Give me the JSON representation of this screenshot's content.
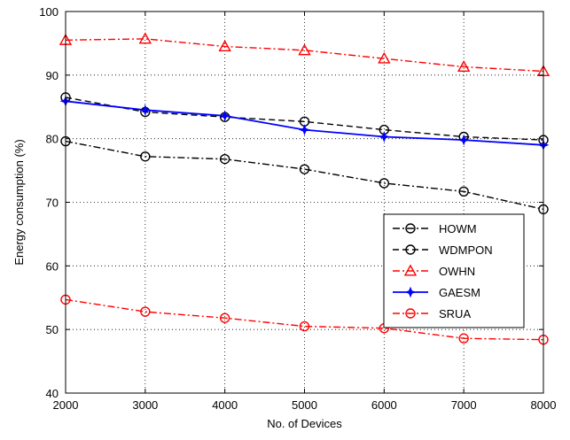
{
  "chart_data": {
    "type": "line",
    "title": "",
    "xlabel": "No. of Devices",
    "ylabel": "Energy consumption (%)",
    "x": [
      2000,
      3000,
      4000,
      5000,
      6000,
      7000,
      8000
    ],
    "xlim": [
      2000,
      8000
    ],
    "ylim": [
      40,
      100
    ],
    "xticks": [
      "2000",
      "3000",
      "4000",
      "5000",
      "6000",
      "7000",
      "8000"
    ],
    "yticks": [
      "40",
      "50",
      "60",
      "70",
      "80",
      "90",
      "100"
    ],
    "grid": true,
    "legend_position": "right",
    "series": [
      {
        "name": "HOWM",
        "values": [
          79.6,
          77.2,
          76.8,
          75.2,
          73.0,
          71.7,
          68.9
        ],
        "color": "#000000",
        "dash": "dash-dot",
        "marker": "circle"
      },
      {
        "name": "WDMPON",
        "values": [
          86.5,
          84.2,
          83.4,
          82.7,
          81.4,
          80.3,
          79.8
        ],
        "color": "#000000",
        "dash": "dashed",
        "marker": "circle"
      },
      {
        "name": "OWHN",
        "values": [
          95.5,
          95.7,
          94.5,
          93.9,
          92.6,
          91.3,
          90.6
        ],
        "color": "#ff0000",
        "dash": "dash-dot",
        "marker": "triangle"
      },
      {
        "name": "GAESM",
        "values": [
          85.9,
          84.5,
          83.6,
          81.4,
          80.3,
          79.8,
          79.0
        ],
        "color": "#0000ff",
        "dash": "solid",
        "marker": "star"
      },
      {
        "name": "SRUA",
        "values": [
          54.7,
          52.8,
          51.8,
          50.5,
          50.2,
          48.6,
          48.4
        ],
        "color": "#ff0000",
        "dash": "dash-dot",
        "marker": "circle"
      }
    ]
  }
}
